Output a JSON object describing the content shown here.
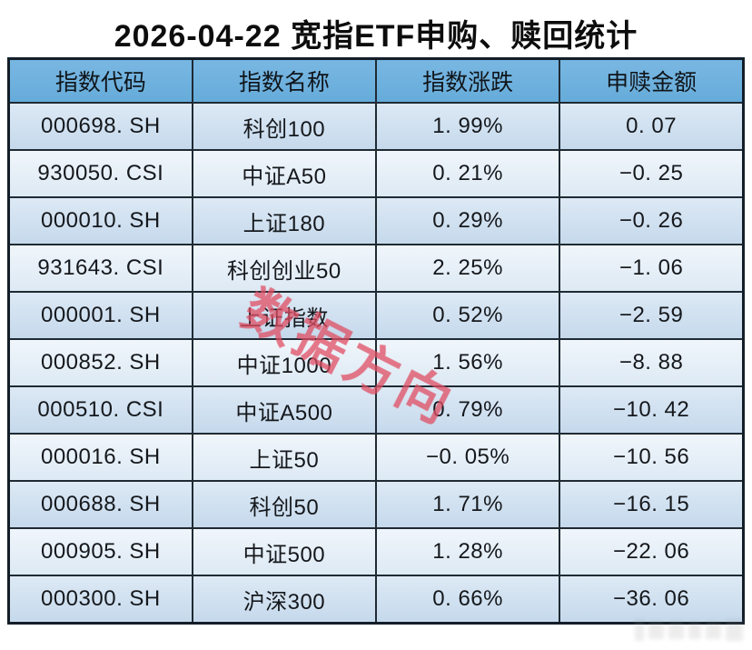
{
  "title": "2026-04-22 宽指ETF申购、赎回统计",
  "watermark": {
    "diagonal_text": "数据方向"
  },
  "colors": {
    "header_bg": "#6bb0dd",
    "row_odd_top": "#dde9f5",
    "row_odd_bottom": "#c5d9ec",
    "row_even_top": "#f0f6fb",
    "row_even_bottom": "#dde9f4",
    "border": "#1f2a33",
    "watermark_red": "#e04d63",
    "text": "#15181c"
  },
  "table": {
    "headers": [
      "指数代码",
      "指数名称",
      "指数涨跌",
      "申赎金额"
    ],
    "rows": [
      {
        "code": "000698. SH",
        "name": "科创100",
        "change": "1. 99%",
        "amount": "0. 07"
      },
      {
        "code": "930050. CSI",
        "name": "中证A50",
        "change": "0. 21%",
        "amount": "−0. 25"
      },
      {
        "code": "000010. SH",
        "name": "上证180",
        "change": "0. 29%",
        "amount": "−0. 26"
      },
      {
        "code": "931643. CSI",
        "name": "科创创业50",
        "change": "2. 25%",
        "amount": "−1. 06"
      },
      {
        "code": "000001. SH",
        "name": "上证指数",
        "change": "0. 52%",
        "amount": "−2. 59"
      },
      {
        "code": "000852. SH",
        "name": "中证1000",
        "change": "1. 56%",
        "amount": "−8. 88"
      },
      {
        "code": "000510. CSI",
        "name": "中证A500",
        "change": "0. 79%",
        "amount": "−10. 42"
      },
      {
        "code": "000016. SH",
        "name": "上证50",
        "change": "−0. 05%",
        "amount": "−10. 56"
      },
      {
        "code": "000688. SH",
        "name": "科创50",
        "change": "1. 71%",
        "amount": "−16. 15"
      },
      {
        "code": "000905. SH",
        "name": "中证500",
        "change": "1. 28%",
        "amount": "−22. 06"
      },
      {
        "code": "000300. SH",
        "name": "沪深300",
        "change": "0. 66%",
        "amount": "−36. 06"
      }
    ]
  },
  "chart_data": {
    "type": "table",
    "title": "2026-04-22 宽指ETF申购、赎回统计",
    "columns": [
      "指数代码",
      "指数名称",
      "指数涨跌(%)",
      "申赎金额"
    ],
    "rows": [
      [
        "000698.SH",
        "科创100",
        1.99,
        0.07
      ],
      [
        "930050.CSI",
        "中证A50",
        0.21,
        -0.25
      ],
      [
        "000010.SH",
        "上证180",
        0.29,
        -0.26
      ],
      [
        "931643.CSI",
        "科创创业50",
        2.25,
        -1.06
      ],
      [
        "000001.SH",
        "上证指数",
        0.52,
        -2.59
      ],
      [
        "000852.SH",
        "中证1000",
        1.56,
        -8.88
      ],
      [
        "000510.CSI",
        "中证A500",
        0.79,
        -10.42
      ],
      [
        "000016.SH",
        "上证50",
        -0.05,
        -10.56
      ],
      [
        "000688.SH",
        "科创50",
        1.71,
        -16.15
      ],
      [
        "000905.SH",
        "中证500",
        1.28,
        -22.06
      ],
      [
        "000300.SH",
        "沪深300",
        0.66,
        -36.06
      ]
    ]
  }
}
